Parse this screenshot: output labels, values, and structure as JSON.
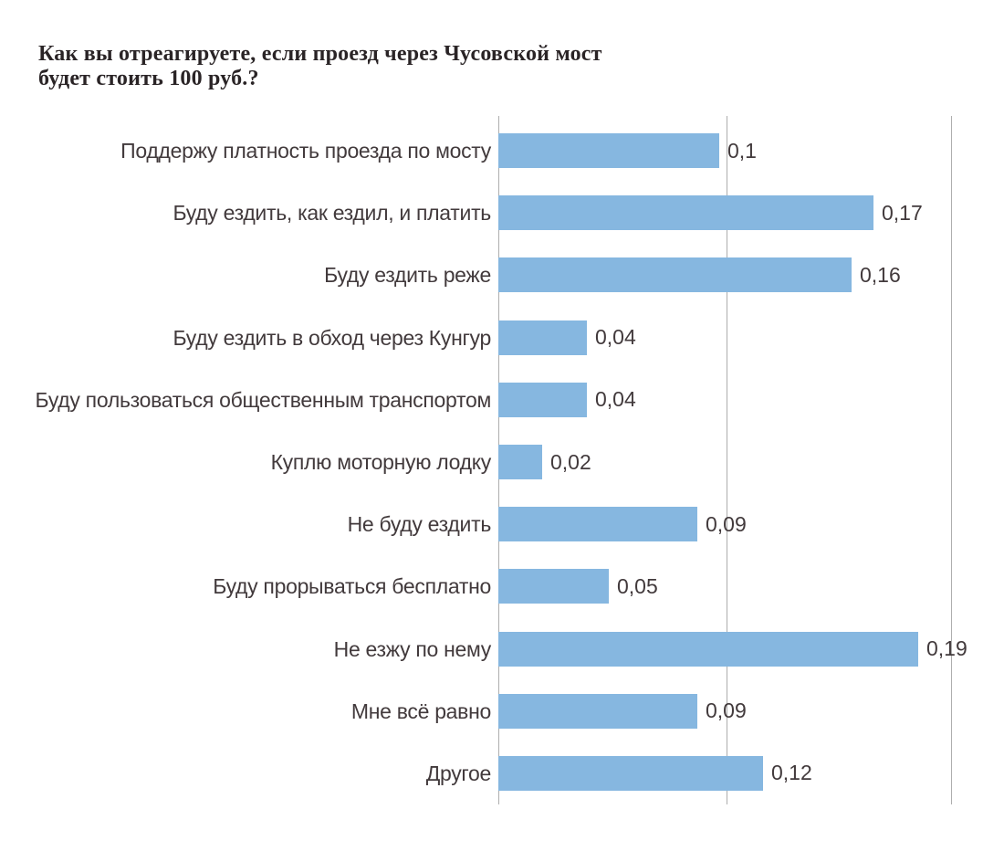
{
  "page": {
    "background_color": "#ffffff"
  },
  "title_lines": {
    "line1": "Как вы отреагируете, если проезд через Чусовской мост",
    "line2": "будет стоить 100 руб.?"
  },
  "chart_data": {
    "type": "bar",
    "orientation": "horizontal",
    "title": "Как вы отреагируете, если проезд через Чусовской мост будет стоить 100 руб.?",
    "categories": [
      "Поддержу платность проезда по мосту",
      "Буду ездить, как ездил, и платить",
      "Буду ездить реже",
      "Буду ездить в обход через Кунгур",
      "Буду пользоваться общественным транспортом",
      "Куплю моторную лодку",
      "Не буду ездить",
      "Буду прорываться бесплатно",
      "Не езжу по нему",
      "Мне всё равно",
      "Другое"
    ],
    "values": [
      0.1,
      0.17,
      0.16,
      0.04,
      0.04,
      0.02,
      0.09,
      0.05,
      0.19,
      0.09,
      0.12
    ],
    "value_labels": [
      "0,1",
      "0,17",
      "0,16",
      "0,04",
      "0,04",
      "0,02",
      "0,09",
      "0,05",
      "0,19",
      "0,09",
      "0,12"
    ],
    "rows": [
      {
        "label": "Поддержу платность проезда по мосту",
        "value": 0.1,
        "value_label": "0,1"
      },
      {
        "label": "Буду ездить, как ездил, и платить",
        "value": 0.17,
        "value_label": "0,17"
      },
      {
        "label": "Буду ездить реже",
        "value": 0.16,
        "value_label": "0,16"
      },
      {
        "label": "Буду ездить в обход через Кунгур",
        "value": 0.04,
        "value_label": "0,04"
      },
      {
        "label": "Буду пользоваться общественным транспортом",
        "value": 0.04,
        "value_label": "0,04"
      },
      {
        "label": "Куплю моторную лодку",
        "value": 0.02,
        "value_label": "0,02"
      },
      {
        "label": "Не буду ездить",
        "value": 0.09,
        "value_label": "0,09"
      },
      {
        "label": "Буду прорываться бесплатно",
        "value": 0.05,
        "value_label": "0,05"
      },
      {
        "label": "Не езжу по нему",
        "value": 0.19,
        "value_label": "0,19"
      },
      {
        "label": "Мне всё равно",
        "value": 0.09,
        "value_label": "0,09"
      },
      {
        "label": "Другое",
        "value": 0.12,
        "value_label": "0,12"
      }
    ],
    "xlabel": "",
    "ylabel": "",
    "xlim": [
      0,
      0.2
    ],
    "gridlines_x": [
      0,
      0.1,
      0.2
    ],
    "grid": "vertical gridlines only, no tick labels",
    "legend": "none",
    "data_labels": "shown at bar end, comma decimal separator",
    "bar_color": "#86b7e0",
    "gridline_color": "#aeaeae",
    "label_color": "#423a3c",
    "title_color": "#2a2426"
  }
}
